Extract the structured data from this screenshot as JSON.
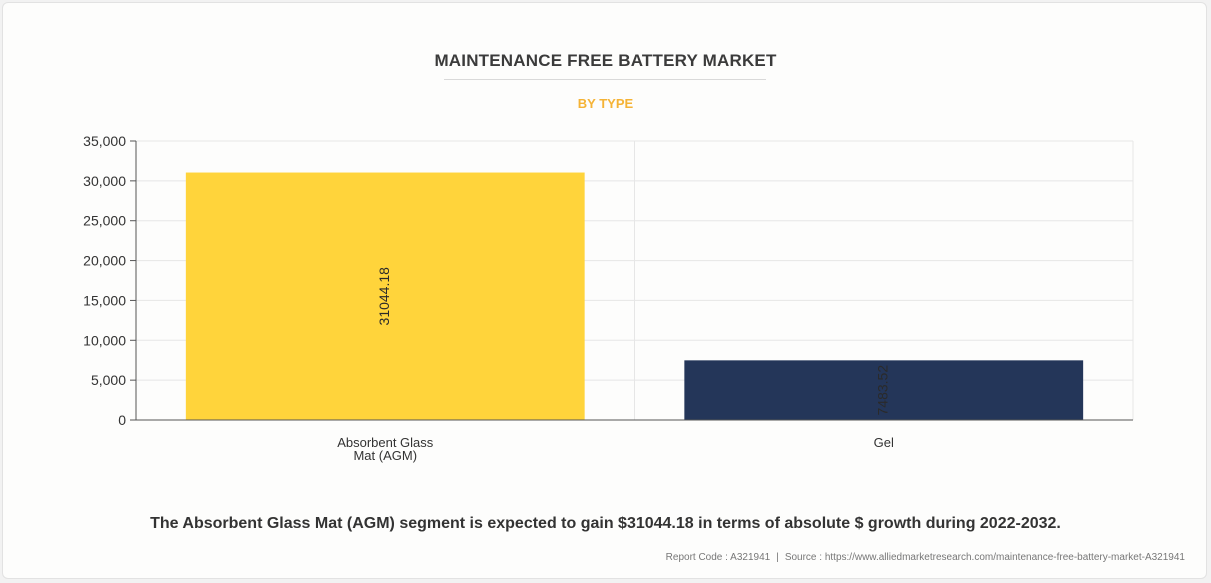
{
  "header": {
    "title": "MAINTENANCE FREE BATTERY MARKET",
    "subtitle": "BY TYPE"
  },
  "summary": "The Absorbent Glass Mat (AGM) segment is expected to gain $31044.18 in terms of absolute $ growth during 2022-2032.",
  "footer": {
    "report_code": "Report Code : A321941",
    "separator": "|",
    "source": "Source : https://www.alliedmarketresearch.com/maintenance-free-battery-market-A321941"
  },
  "colors": {
    "title": "#3b3b3b",
    "subtitle": "#f5b335",
    "bar_agm": "#ffd43b",
    "bar_gel": "#243659"
  },
  "chart_data": {
    "type": "bar",
    "title": "MAINTENANCE FREE BATTERY MARKET",
    "subtitle": "BY TYPE",
    "categories": [
      [
        "Absorbent Glass",
        "Mat (AGM)"
      ],
      [
        "Gel"
      ]
    ],
    "values": [
      31044.18,
      7483.52
    ],
    "value_labels": [
      "31044.18",
      "7483.52"
    ],
    "bar_colors": [
      "#ffd43b",
      "#243659"
    ],
    "ylim": [
      0,
      35000
    ],
    "yticks": [
      0,
      5000,
      10000,
      15000,
      20000,
      25000,
      30000,
      35000
    ],
    "ytick_labels": [
      "0",
      "5,000",
      "10,000",
      "15,000",
      "20,000",
      "25,000",
      "30,000",
      "35,000"
    ],
    "grid": true,
    "legend": false,
    "xlabel": "",
    "ylabel": ""
  }
}
